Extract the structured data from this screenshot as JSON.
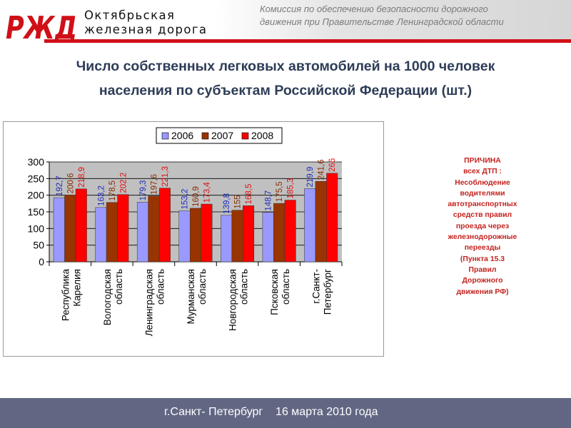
{
  "header": {
    "org_name_line1": "Октябрьская",
    "org_name_line2": "железная дорога",
    "commission_line1": "Комиссия по обеспечению безопасности дорожного",
    "commission_line2": "движения при Правительстве Ленинградской области",
    "brand_color": "#d01018"
  },
  "slide": {
    "title_line1": "Число собственных легковых автомобилей на 1000 человек",
    "title_line2": "населения по субъектам Российской Федерации (шт.)"
  },
  "chart_data": {
    "type": "bar",
    "categories": [
      [
        "Республика",
        "Карелия"
      ],
      [
        "Вологодская",
        "область"
      ],
      [
        "Ленинградская",
        "область"
      ],
      [
        "Мурманская",
        "область"
      ],
      [
        "Новгородская",
        "область"
      ],
      [
        "Псковская",
        "область"
      ],
      [
        "г.Санкт-",
        "Петербург"
      ]
    ],
    "series": [
      {
        "name": "2006",
        "color": "#9999ff",
        "label_color": "#1f2bbf",
        "values": [
          192.7,
          163.2,
          179.3,
          153.2,
          139.8,
          148.7,
          219.9
        ],
        "labels": [
          "192,7",
          "163,2",
          "179,3",
          "153,2",
          "139,8",
          "148,7",
          "219,9"
        ]
      },
      {
        "name": "2007",
        "color": "#993300",
        "label_color": "#8a2a00",
        "values": [
          200.6,
          178.5,
          197.6,
          160.9,
          155,
          175.5,
          241.6
        ],
        "labels": [
          "200,6",
          "178,5",
          "197,6",
          "160,9",
          "155",
          "175,5",
          "241,6"
        ]
      },
      {
        "name": "2008",
        "color": "#ff0000",
        "label_color": "#e01010",
        "values": [
          218.9,
          202.2,
          221.3,
          173.4,
          168.5,
          185.3,
          266
        ],
        "labels": [
          "218,9",
          "202,2",
          "221,3",
          "173,4",
          "168,5",
          "185,3",
          "266"
        ]
      }
    ],
    "yticks": [
      0,
      50,
      100,
      150,
      200,
      250,
      300
    ],
    "ylim": [
      0,
      300
    ],
    "grid": true,
    "legend_position": "top"
  },
  "cause_note": {
    "lines": [
      "ПРИЧИНА",
      "всех ДТП :",
      "Несоблюдение",
      "водителями",
      "автотранспортных",
      "средств правил",
      "проезда через",
      "железнодорожные",
      "переезды",
      "(Пункта 15.3",
      "Правил",
      "Дорожного",
      "движения РФ)"
    ]
  },
  "footer": {
    "city": "г.Санкт- Петербург",
    "date": "16 марта 2010 года"
  }
}
